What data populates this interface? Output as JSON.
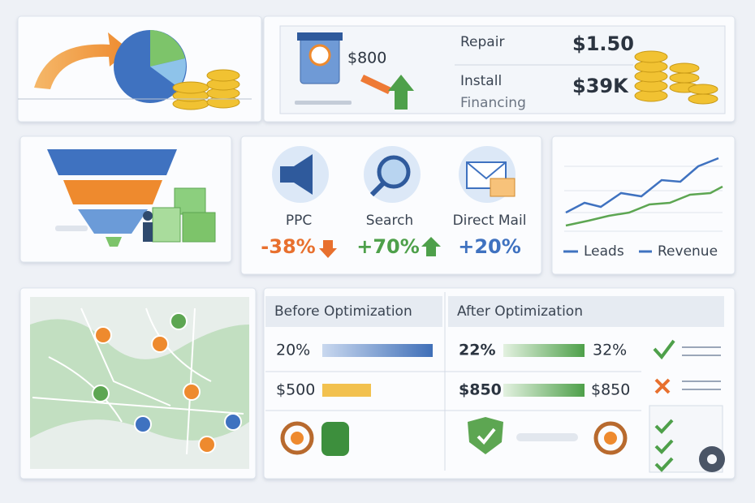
{
  "pricing": {
    "offer": "$800",
    "services": [
      {
        "label": "Repair",
        "price": "$1.50"
      },
      {
        "label": "Install",
        "price": "$39K"
      }
    ],
    "note": "Financing"
  },
  "channels": [
    {
      "name": "PPC",
      "change": "-38%"
    },
    {
      "name": "Search",
      "change": "+70%"
    },
    {
      "name": "Direct Mail",
      "change": "+20%"
    }
  ],
  "trend": {
    "legend": [
      "Leads",
      "Revenue"
    ]
  },
  "comparison": {
    "before": {
      "title": "Before Optimization",
      "rows": [
        "20%",
        "$500"
      ]
    },
    "after": {
      "title": "After Optimization",
      "rows": [
        [
          "22%",
          "32%"
        ],
        [
          "$850",
          "$850"
        ]
      ]
    }
  }
}
